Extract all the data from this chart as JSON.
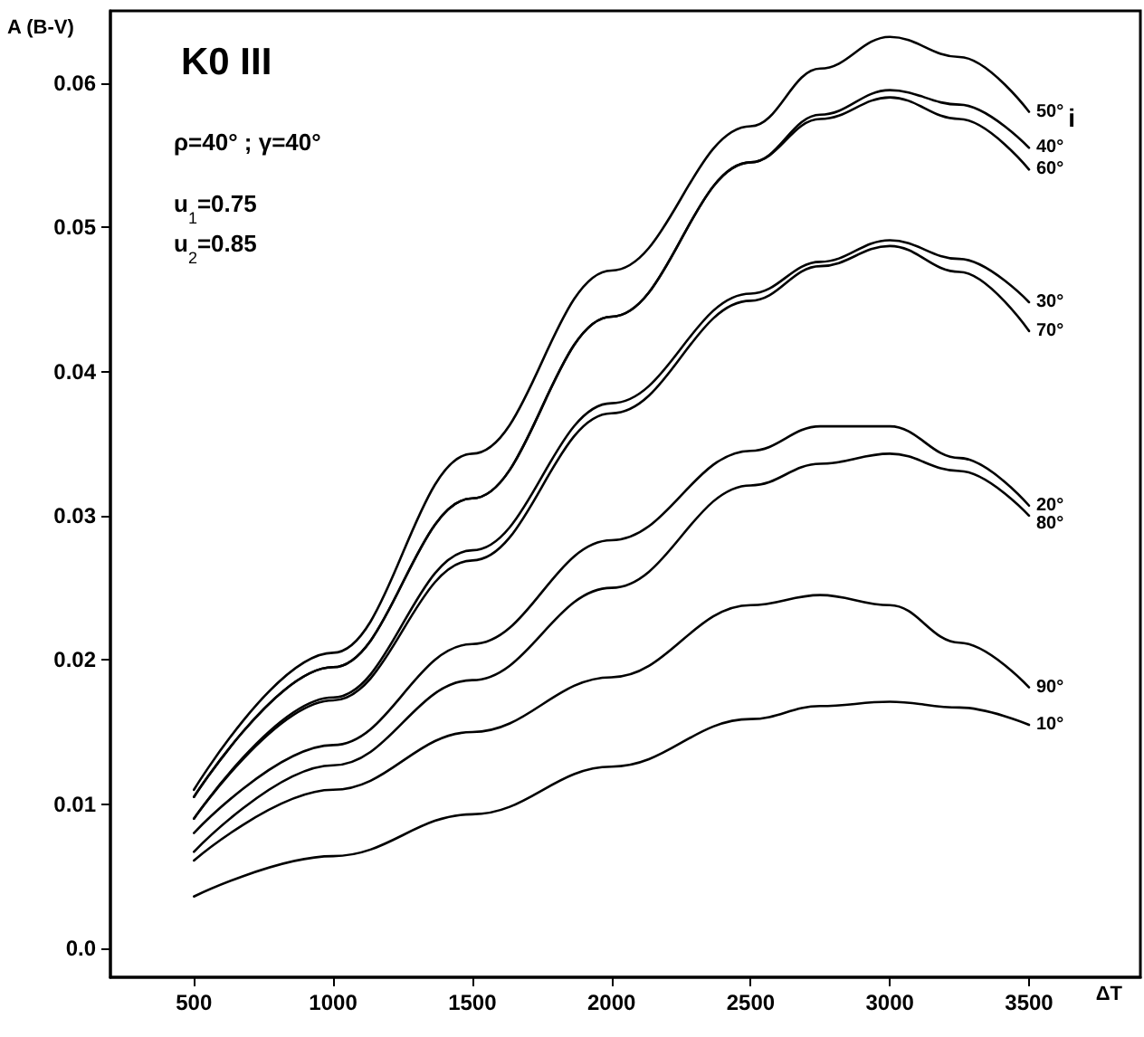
{
  "chart_data": {
    "type": "line",
    "title": "K0 III",
    "xlabel": "ΔT",
    "ylabel": "A (B-V)",
    "legend_title": "i",
    "annotations": [
      "ρ=40° ; γ=40°",
      "u$_{1}$=0.75",
      "u$_{2}$=0.85"
    ],
    "x": [
      500,
      1000,
      1500,
      2000,
      2500,
      2750,
      3000,
      3250,
      3500
    ],
    "series": [
      {
        "name": "50°",
        "color": "#000000",
        "values": [
          0.011,
          0.0205,
          0.0343,
          0.047,
          0.057,
          0.061,
          0.0632,
          0.0618,
          0.058
        ]
      },
      {
        "name": "40°",
        "color": "#000000",
        "values": [
          0.0105,
          0.0195,
          0.0312,
          0.0438,
          0.0545,
          0.0578,
          0.0595,
          0.0585,
          0.0555
        ]
      },
      {
        "name": "60°",
        "color": "#000000",
        "values": [
          0.0105,
          0.0195,
          0.0312,
          0.0438,
          0.0545,
          0.0575,
          0.059,
          0.0575,
          0.054
        ]
      },
      {
        "name": "30°",
        "color": "#000000",
        "values": [
          0.009,
          0.0174,
          0.0276,
          0.0378,
          0.0454,
          0.0476,
          0.0491,
          0.0478,
          0.0448
        ]
      },
      {
        "name": "70°",
        "color": "#000000",
        "values": [
          0.009,
          0.0172,
          0.0269,
          0.0371,
          0.0449,
          0.0473,
          0.0487,
          0.0469,
          0.0428
        ]
      },
      {
        "name": "20°",
        "color": "#000000",
        "values": [
          0.008,
          0.0141,
          0.0211,
          0.0283,
          0.0345,
          0.0362,
          0.0362,
          0.034,
          0.0307
        ]
      },
      {
        "name": "80°",
        "color": "#000000",
        "values": [
          0.0067,
          0.0127,
          0.0186,
          0.025,
          0.0321,
          0.0336,
          0.0343,
          0.0331,
          0.03
        ]
      },
      {
        "name": "90°",
        "color": "#000000",
        "values": [
          0.0061,
          0.011,
          0.015,
          0.0188,
          0.0238,
          0.0245,
          0.0238,
          0.0212,
          0.0181
        ]
      },
      {
        "name": "10°",
        "color": "#000000",
        "values": [
          0.0036,
          0.0064,
          0.0093,
          0.0126,
          0.0159,
          0.0168,
          0.0171,
          0.0167,
          0.0155
        ]
      }
    ],
    "xlim": [
      200,
      3900
    ],
    "xticks": [
      500,
      1000,
      1500,
      2000,
      2500,
      3000,
      3500
    ],
    "ylim": [
      -0.002,
      0.065
    ],
    "yticks": [
      {
        "value": 0,
        "label": "0.0"
      },
      0.01,
      0.02,
      0.03,
      0.04,
      0.05,
      0.06
    ],
    "grid": false,
    "legend": false,
    "marker": "none",
    "line_style": "solid"
  }
}
